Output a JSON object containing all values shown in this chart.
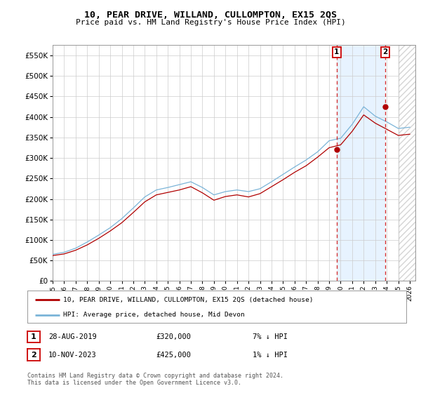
{
  "title": "10, PEAR DRIVE, WILLAND, CULLOMPTON, EX15 2QS",
  "subtitle": "Price paid vs. HM Land Registry's House Price Index (HPI)",
  "legend_line1": "10, PEAR DRIVE, WILLAND, CULLOMPTON, EX15 2QS (detached house)",
  "legend_line2": "HPI: Average price, detached house, Mid Devon",
  "footer": "Contains HM Land Registry data © Crown copyright and database right 2024.\nThis data is licensed under the Open Government Licence v3.0.",
  "sale1_date": "28-AUG-2019",
  "sale1_price": "£320,000",
  "sale1_hpi": "7% ↓ HPI",
  "sale1_year": 2019.65,
  "sale1_value": 320000,
  "sale2_date": "10-NOV-2023",
  "sale2_price": "£425,000",
  "sale2_hpi": "1% ↓ HPI",
  "sale2_year": 2023.86,
  "sale2_value": 425000,
  "hpi_color": "#7ab4d8",
  "price_color": "#b00000",
  "vline_color": "#cc0000",
  "shade_color": "#ddeeff",
  "background_color": "#ffffff",
  "plot_bg_color": "#ffffff",
  "grid_color": "#cccccc",
  "ylim_min": 0,
  "ylim_max": 575000,
  "xlim_start": 1995.0,
  "xlim_end": 2026.5,
  "hpi_base": [
    65000,
    70000,
    80000,
    95000,
    112000,
    130000,
    152000,
    178000,
    205000,
    222000,
    228000,
    235000,
    242000,
    228000,
    210000,
    218000,
    222000,
    218000,
    225000,
    242000,
    260000,
    278000,
    295000,
    315000,
    342000,
    348000,
    382000,
    425000,
    402000,
    388000,
    372000,
    375000
  ],
  "price_base": [
    62000,
    66000,
    75000,
    88000,
    104000,
    122000,
    142000,
    167000,
    193000,
    210000,
    216000,
    222000,
    230000,
    215000,
    197000,
    206000,
    210000,
    205000,
    213000,
    230000,
    247000,
    265000,
    281000,
    302000,
    325000,
    332000,
    365000,
    405000,
    385000,
    370000,
    355000,
    358000
  ]
}
